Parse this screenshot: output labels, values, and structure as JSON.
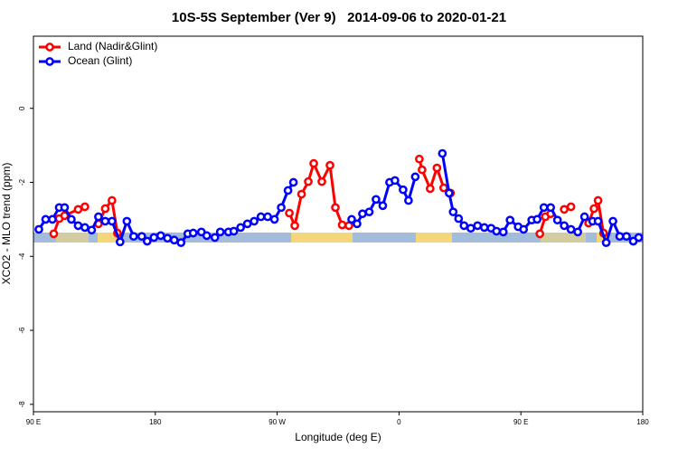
{
  "chart_data": {
    "type": "line",
    "title": "10S-5S September (Ver 9)   2014-09-06 to 2020-01-21",
    "x_label": "Longitude (deg E)",
    "y_label": "XCO2 - MLO trend (ppm)",
    "xlim": [
      90,
      540
    ],
    "ylim": [
      -8.2,
      1.95
    ],
    "xticks": [
      {
        "value": 90,
        "label": "90 E"
      },
      {
        "value": 180,
        "label": "180"
      },
      {
        "value": 270,
        "label": "90 W"
      },
      {
        "value": 360,
        "label": "0"
      },
      {
        "value": 450,
        "label": "90 E"
      },
      {
        "value": 540,
        "label": "180"
      }
    ],
    "yticks": [
      0,
      -2,
      -4,
      -6,
      -8
    ],
    "legend": "top-left",
    "series": [
      {
        "name": "Land (Nadir&Glint)",
        "color": "#ff0000",
        "x": [
          105,
          109,
          113,
          123,
          128,
          null,
          138,
          143,
          148,
          152,
          null,
          279,
          283,
          288,
          293,
          297,
          303,
          309,
          313,
          318,
          323,
          null,
          375,
          377,
          383,
          388,
          393,
          398,
          null,
          464,
          468,
          472,
          null,
          482,
          487,
          null,
          500,
          504,
          507,
          511
        ],
        "values": [
          -3.39,
          -2.98,
          -2.9,
          -2.73,
          -2.66,
          null,
          -3.12,
          -2.71,
          -2.49,
          -3.37,
          null,
          -2.83,
          -3.17,
          -2.32,
          -1.98,
          -1.49,
          -1.98,
          -1.54,
          -2.68,
          -3.15,
          -3.17,
          null,
          -1.37,
          -1.66,
          -2.17,
          -1.61,
          -2.15,
          -2.29,
          null,
          -3.39,
          -2.93,
          -2.85,
          null,
          -2.73,
          -2.66,
          null,
          -3.1,
          -2.71,
          -2.49,
          -3.37
        ]
      },
      {
        "name": "Ocean (Glint)",
        "color": "#0000ff",
        "x": [
          94,
          99,
          104,
          109,
          113,
          118,
          123,
          128,
          133,
          138,
          143,
          148,
          154,
          159,
          164,
          170,
          174,
          179,
          184,
          189,
          194,
          199,
          204,
          208,
          214,
          218,
          224,
          228,
          234,
          238,
          243,
          248,
          253,
          258,
          263,
          268,
          273,
          278,
          282,
          null,
          325,
          329,
          333,
          338,
          343,
          348,
          353,
          357,
          363,
          367,
          372,
          null,
          392,
          397,
          400,
          404,
          408,
          413,
          418,
          423,
          428,
          432,
          437,
          442,
          448,
          452,
          458,
          462,
          467,
          472,
          477,
          482,
          487,
          492,
          497,
          503,
          507,
          513,
          518,
          523,
          528,
          533,
          537
        ],
        "values": [
          -3.27,
          -3.0,
          -3.0,
          -2.68,
          -2.68,
          -3.0,
          -3.17,
          -3.22,
          -3.29,
          -2.93,
          -3.05,
          -3.05,
          -3.61,
          -3.05,
          -3.46,
          -3.46,
          -3.59,
          -3.49,
          -3.44,
          -3.51,
          -3.56,
          -3.63,
          -3.39,
          -3.37,
          -3.34,
          -3.44,
          -3.49,
          -3.34,
          -3.34,
          -3.32,
          -3.22,
          -3.12,
          -3.05,
          -2.93,
          -2.93,
          -3.0,
          -2.68,
          -2.22,
          -2.0,
          null,
          -3.0,
          -3.12,
          -2.85,
          -2.8,
          -2.46,
          -2.63,
          -2.0,
          -1.95,
          -2.2,
          -2.49,
          -1.85,
          null,
          -1.22,
          -2.29,
          -2.8,
          -2.98,
          -3.17,
          -3.24,
          -3.17,
          -3.22,
          -3.24,
          -3.32,
          -3.34,
          -3.02,
          -3.2,
          -3.27,
          -3.02,
          -3.0,
          -2.68,
          -2.68,
          -3.02,
          -3.17,
          -3.27,
          -3.34,
          -2.93,
          -3.05,
          -3.05,
          -3.63,
          -3.05,
          -3.46,
          -3.46,
          -3.59,
          -3.49
        ]
      }
    ]
  }
}
